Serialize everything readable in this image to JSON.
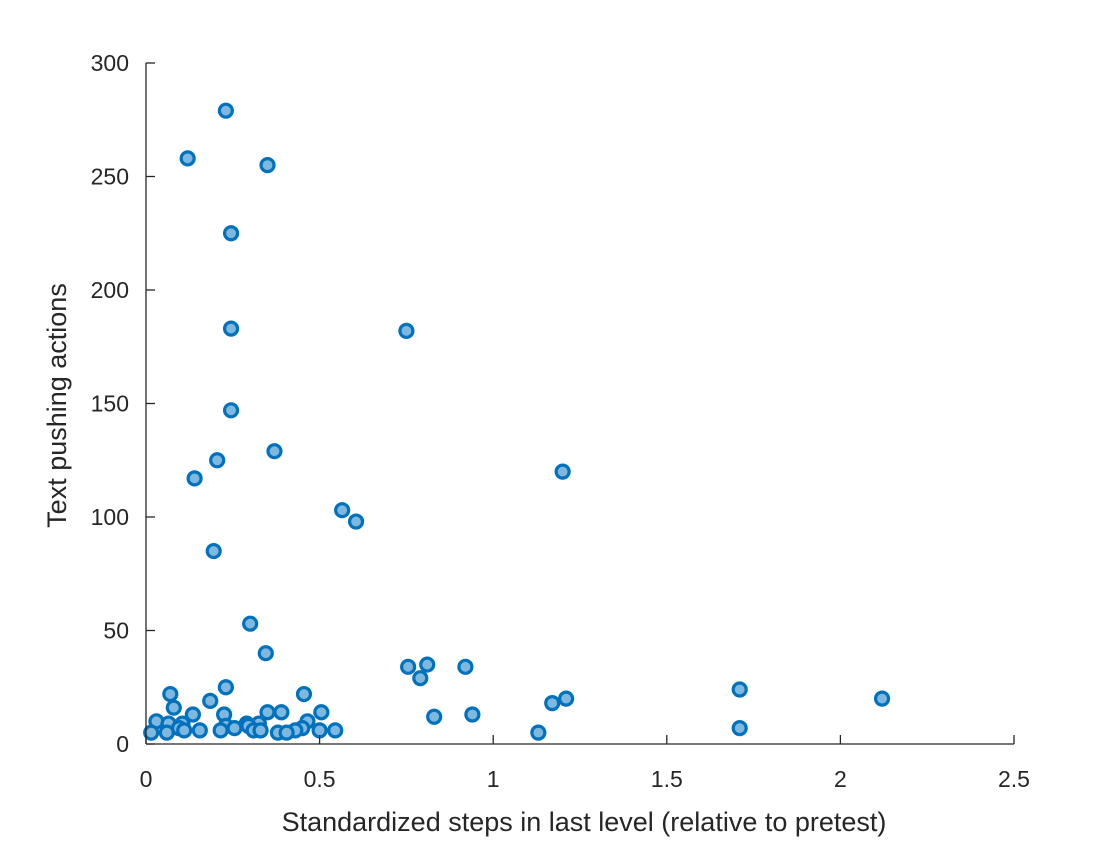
{
  "chart_data": {
    "type": "scatter",
    "title": "",
    "xlabel": "Standardized steps in last level (relative to pretest)",
    "ylabel": "Text pushing actions",
    "xlim": [
      0,
      2.5
    ],
    "ylim": [
      0,
      300
    ],
    "xticks": [
      0,
      0.5,
      1,
      1.5,
      2,
      2.5
    ],
    "xtick_labels": [
      "0",
      "0.5",
      "1",
      "1.5",
      "2",
      "2.5"
    ],
    "yticks": [
      0,
      50,
      100,
      150,
      200,
      250,
      300
    ],
    "ytick_labels": [
      "0",
      "50",
      "100",
      "150",
      "200",
      "250",
      "300"
    ],
    "grid": false,
    "colors": {
      "marker_edge": "#0072bd",
      "marker_fill": "#7fb8de",
      "axis": "#262626"
    },
    "series": [
      {
        "points": [
          [
            0.23,
            279
          ],
          [
            0.12,
            258
          ],
          [
            0.35,
            255
          ],
          [
            0.245,
            225
          ],
          [
            0.245,
            183
          ],
          [
            0.75,
            182
          ],
          [
            0.245,
            147
          ],
          [
            0.37,
            129
          ],
          [
            0.205,
            125
          ],
          [
            1.2,
            120
          ],
          [
            0.14,
            117
          ],
          [
            0.565,
            103
          ],
          [
            0.605,
            98
          ],
          [
            0.195,
            85
          ],
          [
            0.3,
            53
          ],
          [
            0.345,
            40
          ],
          [
            0.81,
            35
          ],
          [
            0.755,
            34
          ],
          [
            0.92,
            34
          ],
          [
            0.79,
            29
          ],
          [
            0.23,
            25
          ],
          [
            1.71,
            24
          ],
          [
            0.07,
            22
          ],
          [
            0.455,
            22
          ],
          [
            1.21,
            20
          ],
          [
            2.12,
            20
          ],
          [
            0.185,
            19
          ],
          [
            1.17,
            18
          ],
          [
            0.08,
            16
          ],
          [
            0.35,
            14
          ],
          [
            0.39,
            14
          ],
          [
            0.505,
            14
          ],
          [
            0.135,
            13
          ],
          [
            0.225,
            13
          ],
          [
            0.94,
            13
          ],
          [
            0.83,
            12
          ],
          [
            0.03,
            10
          ],
          [
            0.465,
            10
          ],
          [
            0.065,
            9
          ],
          [
            0.105,
            9
          ],
          [
            0.29,
            9
          ],
          [
            0.325,
            9
          ],
          [
            0.23,
            8
          ],
          [
            0.295,
            8
          ],
          [
            0.45,
            7
          ],
          [
            0.095,
            7
          ],
          [
            1.71,
            7
          ],
          [
            0.255,
            7
          ],
          [
            0.215,
            6
          ],
          [
            0.31,
            6
          ],
          [
            0.33,
            6
          ],
          [
            0.11,
            6
          ],
          [
            0.155,
            6
          ],
          [
            0.43,
            6
          ],
          [
            0.5,
            6
          ],
          [
            0.545,
            6
          ],
          [
            0.015,
            5
          ],
          [
            0.06,
            5
          ],
          [
            0.38,
            5
          ],
          [
            0.405,
            5
          ],
          [
            1.13,
            5
          ]
        ]
      }
    ]
  }
}
